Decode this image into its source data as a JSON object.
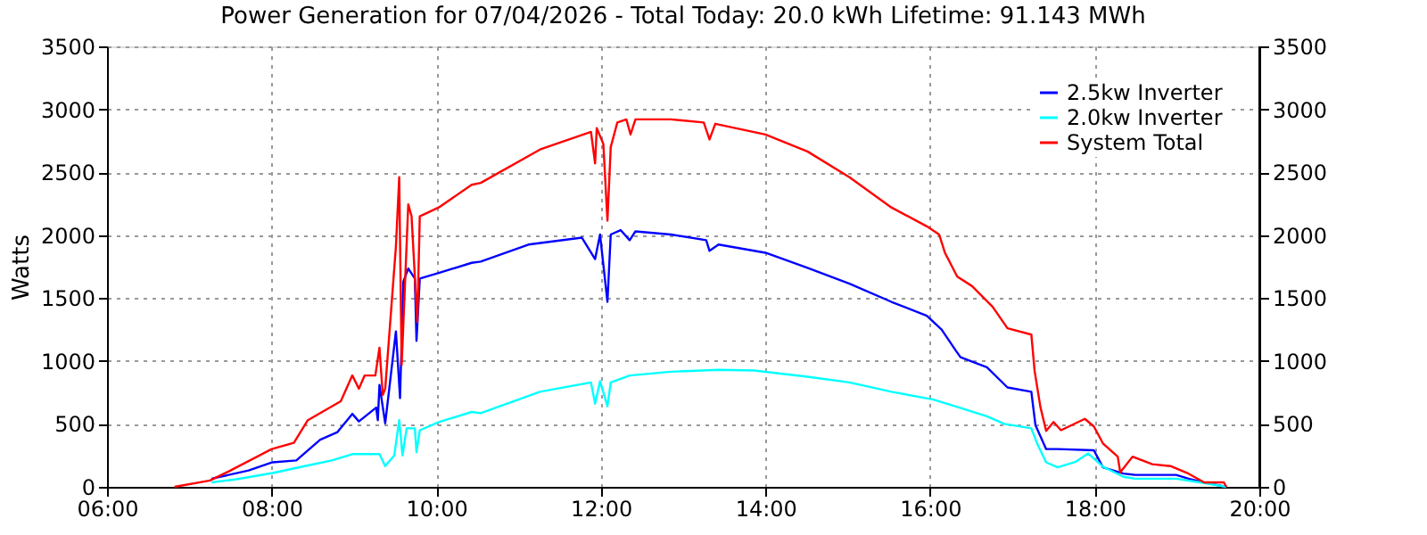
{
  "chart_data": {
    "type": "line",
    "title": "Power Generation for 07/04/2026 - Total Today: 20.0 kWh   Lifetime: 91.143 MWh",
    "ylabel": "Watts",
    "xlim": [
      6,
      20
    ],
    "xticks": [
      {
        "value": 6,
        "label": "06:00"
      },
      {
        "value": 8,
        "label": "08:00"
      },
      {
        "value": 10,
        "label": "10:00"
      },
      {
        "value": 12,
        "label": "12:00"
      },
      {
        "value": 14,
        "label": "14:00"
      },
      {
        "value": 16,
        "label": "16:00"
      },
      {
        "value": 18,
        "label": "18:00"
      },
      {
        "value": 20,
        "label": "20:00"
      }
    ],
    "ylim": [
      0,
      3500
    ],
    "yticks": [
      0,
      500,
      1000,
      1500,
      2000,
      2500,
      3000,
      3500
    ],
    "y2lim": [
      0,
      3500
    ],
    "y2ticks": [
      0,
      500,
      1000,
      1500,
      2000,
      2500,
      3000,
      3500
    ],
    "grid": true,
    "legend": "top right",
    "series": [
      {
        "name": "2.5kw Inverter",
        "color": "#0000ff",
        "x": [
          7.27,
          7.72,
          8.01,
          8.3,
          8.59,
          8.8,
          8.98,
          9.06,
          9.27,
          9.29,
          9.31,
          9.38,
          9.51,
          9.56,
          9.6,
          9.66,
          9.74,
          9.76,
          9.8,
          10.03,
          10.43,
          10.54,
          11.12,
          11.77,
          11.93,
          11.99,
          12.08,
          12.12,
          12.24,
          12.35,
          12.42,
          12.85,
          13.28,
          13.32,
          13.43,
          14.0,
          14.51,
          15.02,
          15.53,
          15.96,
          16.14,
          16.31,
          16.37,
          16.69,
          16.94,
          17.23,
          17.28,
          17.41,
          17.55,
          17.99,
          18.1,
          18.35,
          18.49,
          18.99,
          19.14,
          19.33,
          19.6
        ],
        "values": [
          65,
          130,
          195,
          210,
          375,
          435,
          580,
          520,
          630,
          530,
          810,
          505,
          1235,
          705,
          1630,
          1735,
          1655,
          1160,
          1655,
          1700,
          1780,
          1790,
          1925,
          1980,
          1810,
          2005,
          1470,
          2005,
          2040,
          1960,
          2030,
          2005,
          1960,
          1875,
          1925,
          1860,
          1740,
          1615,
          1470,
          1360,
          1250,
          1085,
          1030,
          950,
          790,
          755,
          490,
          300,
          300,
          290,
          155,
          105,
          95,
          95,
          65,
          35,
          0
        ]
      },
      {
        "name": "2.0kw Inverter",
        "color": "#00ffff",
        "x": [
          7.27,
          7.57,
          8.01,
          8.44,
          8.73,
          8.98,
          9.31,
          9.38,
          9.49,
          9.55,
          9.59,
          9.64,
          9.74,
          9.76,
          9.8,
          10.03,
          10.43,
          10.54,
          11.26,
          11.88,
          11.93,
          11.99,
          12.08,
          12.12,
          12.35,
          12.85,
          13.43,
          13.86,
          14.51,
          15.02,
          15.53,
          16.03,
          16.33,
          16.69,
          16.9,
          17.23,
          17.3,
          17.41,
          17.55,
          17.77,
          17.92,
          18.1,
          18.35,
          18.49,
          18.99,
          19.28,
          19.6
        ],
        "values": [
          35,
          60,
          110,
          170,
          210,
          260,
          260,
          165,
          250,
          530,
          250,
          465,
          465,
          275,
          450,
          515,
          595,
          585,
          755,
          830,
          660,
          840,
          640,
          830,
          885,
          915,
          930,
          925,
          875,
          830,
          755,
          695,
          635,
          560,
          500,
          465,
          345,
          195,
          155,
          200,
          265,
          160,
          80,
          65,
          65,
          35,
          0
        ]
      },
      {
        "name": "System Total",
        "color": "#ff0000",
        "x": [
          6.82,
          7.25,
          7.5,
          8.0,
          8.27,
          8.44,
          8.84,
          8.98,
          9.06,
          9.13,
          9.26,
          9.31,
          9.35,
          9.38,
          9.51,
          9.55,
          9.58,
          9.66,
          9.7,
          9.77,
          9.8,
          10.03,
          10.43,
          10.54,
          11.26,
          11.88,
          11.93,
          11.95,
          12.03,
          12.08,
          12.12,
          12.2,
          12.31,
          12.36,
          12.42,
          12.85,
          13.25,
          13.32,
          13.39,
          14.0,
          14.51,
          15.02,
          15.53,
          15.96,
          16.11,
          16.18,
          16.33,
          16.51,
          16.76,
          16.94,
          17.23,
          17.27,
          17.34,
          17.41,
          17.5,
          17.59,
          17.88,
          17.99,
          18.1,
          18.28,
          18.31,
          18.46,
          18.7,
          18.92,
          19.14,
          19.33,
          19.57,
          19.6
        ],
        "values": [
          0,
          50,
          130,
          300,
          350,
          530,
          680,
          885,
          780,
          885,
          885,
          1105,
          730,
          780,
          1910,
          2460,
          970,
          2245,
          2150,
          1310,
          2150,
          2220,
          2400,
          2415,
          2680,
          2820,
          2570,
          2850,
          2725,
          2115,
          2700,
          2895,
          2920,
          2800,
          2920,
          2920,
          2895,
          2760,
          2885,
          2800,
          2665,
          2460,
          2220,
          2070,
          2005,
          1860,
          1670,
          1595,
          1430,
          1260,
          1210,
          920,
          635,
          445,
          515,
          450,
          540,
          480,
          345,
          240,
          115,
          240,
          180,
          165,
          105,
          35,
          35,
          0
        ]
      }
    ]
  }
}
